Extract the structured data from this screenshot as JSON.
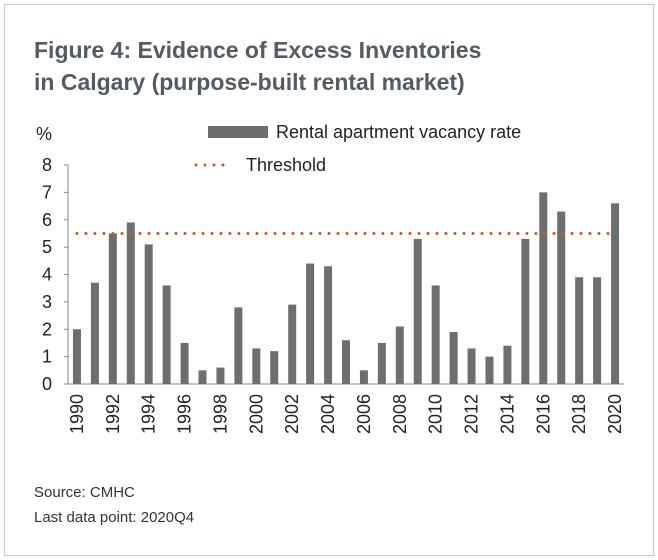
{
  "chart_data": {
    "type": "bar",
    "title_lines": [
      "Figure 4: Evidence of Excess Inventories",
      "in Calgary (purpose-built rental market)"
    ],
    "y_label": "%",
    "categories": [
      "1990",
      null,
      "1992",
      null,
      "1994",
      null,
      "1996",
      null,
      "1998",
      null,
      "2000",
      null,
      "2002",
      null,
      "2004",
      null,
      "2006",
      null,
      "2008",
      null,
      "2010",
      null,
      "2012",
      null,
      "2014",
      null,
      "2016",
      null,
      "2018",
      null,
      "2020"
    ],
    "series": [
      {
        "name": "Rental apartment vacancy rate",
        "type": "bar",
        "color": "#6d6e70",
        "values": [
          2.0,
          3.7,
          5.5,
          5.9,
          5.1,
          3.6,
          1.5,
          0.5,
          0.6,
          2.8,
          1.3,
          1.2,
          2.9,
          4.4,
          4.3,
          1.6,
          0.5,
          1.5,
          2.1,
          5.3,
          3.6,
          1.9,
          1.3,
          1.0,
          1.4,
          5.3,
          7.0,
          6.3,
          3.9,
          3.9,
          6.6
        ]
      },
      {
        "name": "Threshold",
        "type": "line",
        "color": "#c55a1e",
        "values": [
          5.5,
          5.5,
          5.5,
          5.5,
          5.5,
          5.5,
          5.5,
          5.5,
          5.5,
          5.5,
          5.5,
          5.5,
          5.5,
          5.5,
          5.5,
          5.5,
          5.5,
          5.5,
          5.5,
          5.5,
          5.5,
          5.5,
          5.5,
          5.5,
          5.5,
          5.5,
          5.5,
          5.5,
          5.5,
          5.5,
          5.5
        ]
      }
    ],
    "ylim": [
      0,
      8
    ],
    "yticks": [
      0,
      1,
      2,
      3,
      4,
      5,
      6,
      7,
      8
    ],
    "notes": [
      "Source: CMHC",
      "Last data point: 2020Q4"
    ]
  }
}
